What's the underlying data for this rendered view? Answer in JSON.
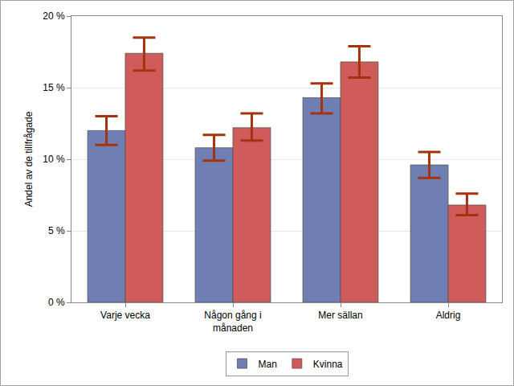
{
  "chart_data": {
    "type": "bar",
    "y_label": "Andel av de tillfrågade",
    "categories": [
      "Varje vecka",
      "Någon gång i månaden",
      "Mer sällan",
      "Aldrig"
    ],
    "series": [
      {
        "name": "Man",
        "color": "#6f7eb3",
        "values": [
          12.0,
          10.8,
          14.3,
          9.6
        ],
        "error_lower": [
          11.0,
          9.9,
          13.2,
          8.7
        ],
        "error_upper": [
          13.0,
          11.7,
          15.3,
          10.5
        ]
      },
      {
        "name": "Kvinna",
        "color": "#d05b5b",
        "values": [
          17.4,
          12.2,
          16.8,
          6.8
        ],
        "error_lower": [
          16.2,
          11.3,
          15.7,
          6.1
        ],
        "error_upper": [
          18.5,
          13.2,
          17.9,
          7.6
        ]
      }
    ],
    "ylim": [
      0,
      20
    ],
    "yticks": [
      {
        "value": 0,
        "label": "0 %"
      },
      {
        "value": 5,
        "label": "5 %"
      },
      {
        "value": 10,
        "label": "10 %"
      },
      {
        "value": 15,
        "label": "15 %"
      },
      {
        "value": 20,
        "label": "20 %"
      }
    ],
    "grid": true,
    "legend": "bottom"
  }
}
